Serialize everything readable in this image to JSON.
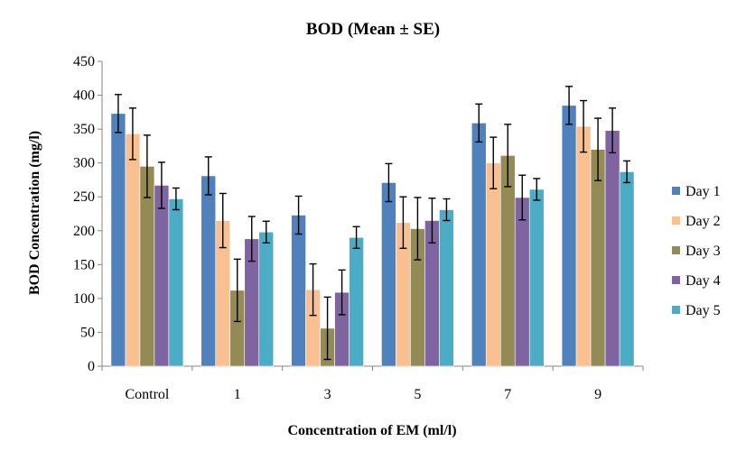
{
  "chart_data": {
    "type": "bar",
    "title": "BOD (Mean ± SE)",
    "xlabel": "Concentration of EM (ml/l)",
    "ylabel": "BOD Concentration (mg/l)",
    "ylim": [
      0,
      450
    ],
    "yticks": [
      0,
      50,
      100,
      150,
      200,
      250,
      300,
      350,
      400,
      450
    ],
    "grid": false,
    "legend_position": "right",
    "categories": [
      "Control",
      "1",
      "3",
      "5",
      "7",
      "9"
    ],
    "series": [
      {
        "name": "Day 1",
        "color": "#4F81BD",
        "values": [
          373,
          281,
          223,
          271,
          359,
          385
        ],
        "errors": [
          28,
          28,
          28,
          28,
          28,
          28
        ]
      },
      {
        "name": "Day 2",
        "color": "#FAC090",
        "values": [
          343,
          215,
          113,
          212,
          300,
          354
        ],
        "errors": [
          38,
          40,
          38,
          38,
          38,
          38
        ]
      },
      {
        "name": "Day 3",
        "color": "#948A54",
        "values": [
          295,
          112,
          56,
          203,
          311,
          320
        ],
        "errors": [
          46,
          46,
          46,
          46,
          46,
          46
        ]
      },
      {
        "name": "Day 4",
        "color": "#8064A2",
        "values": [
          267,
          188,
          109,
          215,
          249,
          348
        ],
        "errors": [
          34,
          33,
          33,
          33,
          33,
          33
        ]
      },
      {
        "name": "Day 5",
        "color": "#4BACC6",
        "values": [
          247,
          198,
          190,
          231,
          261,
          287
        ],
        "errors": [
          16,
          16,
          16,
          16,
          16,
          16
        ]
      }
    ]
  }
}
